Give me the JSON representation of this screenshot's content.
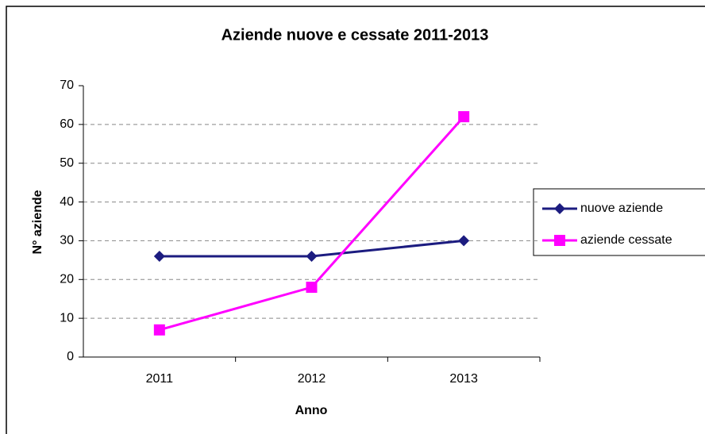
{
  "chart_data": {
    "type": "line",
    "title": "Aziende nuove e cessate 2011-2013",
    "x_label": "Anno",
    "y_label": "N° aziende",
    "categories": [
      "2011",
      "2012",
      "2013"
    ],
    "series": [
      {
        "name": "nuove aziende",
        "color": "#1c1c80",
        "marker": "diamond",
        "values": [
          26,
          26,
          30
        ]
      },
      {
        "name": "aziende cessate",
        "color": "#ff00ff",
        "marker": "square",
        "values": [
          7,
          18,
          62
        ]
      }
    ],
    "ylim": [
      0,
      70
    ],
    "yticks": [
      0,
      10,
      20,
      30,
      40,
      50,
      60,
      70
    ],
    "grid": true,
    "legend": "right"
  }
}
